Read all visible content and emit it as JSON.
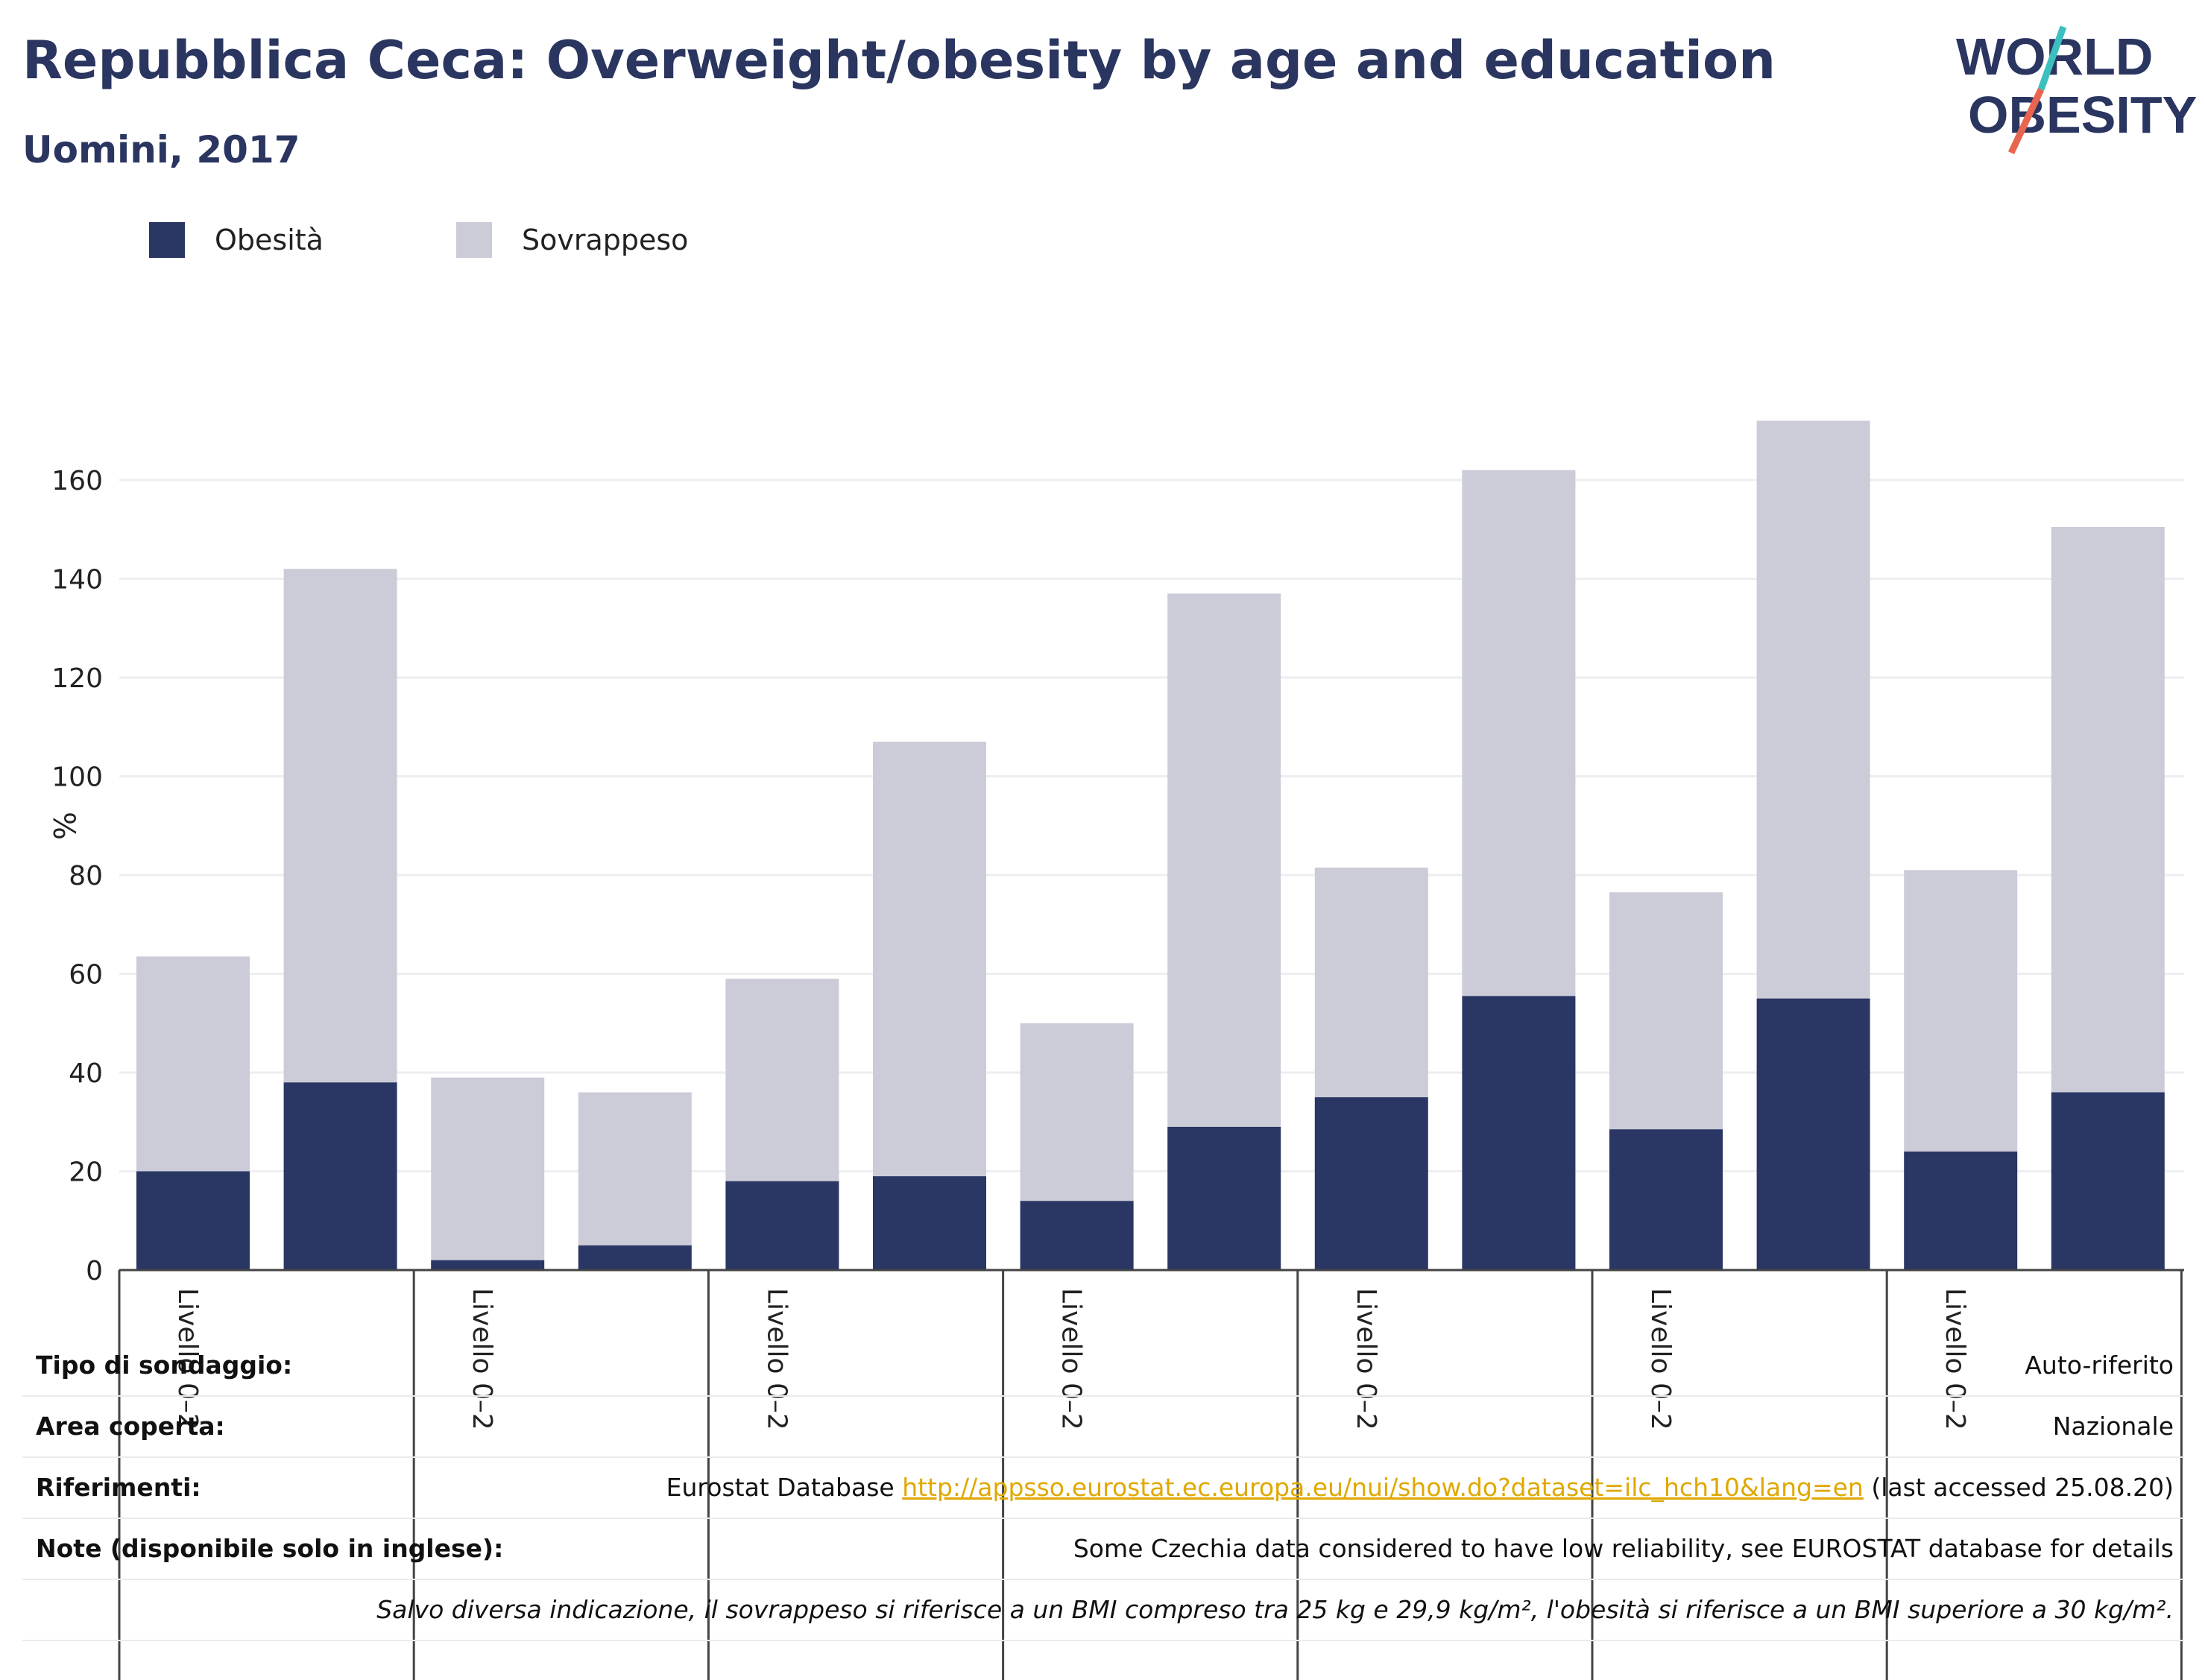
{
  "header": {
    "title": "Repubblica Ceca: Overweight/obesity by age and education",
    "subtitle": "Uomini, 2017",
    "logo_text_line1": "WORLD",
    "logo_text_line2": "OBESITY"
  },
  "colors": {
    "obesity": "#2a3663",
    "overweight": "#cbccd8",
    "title": "#2a3560",
    "logo_teal": "#3bbfbf",
    "logo_red": "#e8664f",
    "link": "#e0a800"
  },
  "chart_data": {
    "type": "bar",
    "stacked": true,
    "ylabel": "%",
    "ylim": [
      0,
      175
    ],
    "yticks": [
      0,
      20,
      40,
      60,
      80,
      100,
      120,
      140,
      160
    ],
    "grid": true,
    "legend_position": "top-left",
    "group_labels": [
      "Livello 0–2",
      "Livello 0–2",
      "Livello 0–2",
      "Livello 0–2",
      "Livello 0–2",
      "Livello 0–2",
      "Livello 0–2"
    ],
    "series": [
      {
        "name": "Obesità",
        "values": [
          20,
          38,
          2,
          5,
          18,
          19,
          14,
          29,
          35,
          55.5,
          28.5,
          55,
          24,
          36
        ]
      },
      {
        "name": "Sovrappeso",
        "values": [
          43.5,
          104,
          37,
          31,
          41,
          88,
          36,
          108,
          46.5,
          106.5,
          48,
          117,
          57,
          114.5
        ]
      }
    ]
  },
  "info": {
    "rows": [
      {
        "key": "Tipo di sondaggio:",
        "value": "Auto-riferito"
      },
      {
        "key": "Area coperta:",
        "value": "Nazionale"
      },
      {
        "key": "Riferimenti:",
        "value_prefix": "Eurostat Database ",
        "link": "http://appsso.eurostat.ec.europa.eu/nui/show.do?dataset=ilc_hch10&lang=en",
        "value_suffix": " (last accessed 25.08.20)"
      },
      {
        "key": "Note (disponibile solo in inglese):",
        "value": "Some Czechia data considered to have low reliability, see EUROSTAT database for details"
      },
      {
        "key": "",
        "value": "Salvo diversa indicazione, il sovrappeso si riferisce a un BMI compreso tra 25 kg e 29,9 kg/m², l'obesità si riferisce a un BMI superiore a 30 kg/m²."
      }
    ]
  }
}
